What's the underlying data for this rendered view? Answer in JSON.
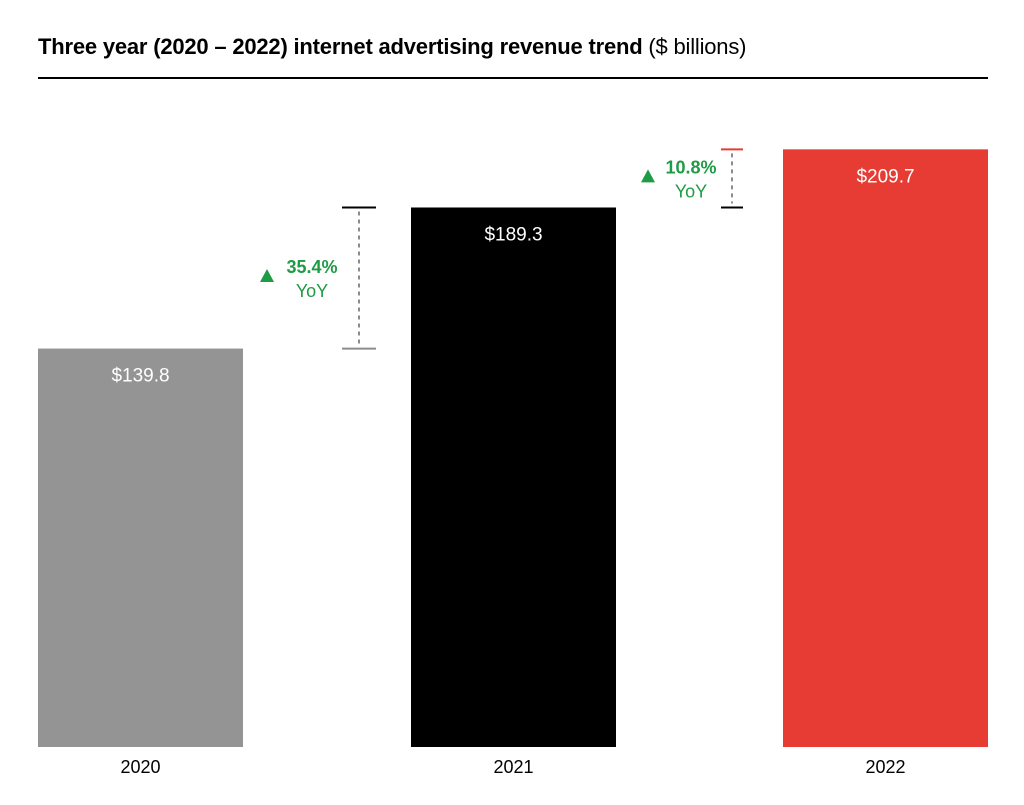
{
  "title": {
    "bold": "Three year (2020 – 2022) internet advertising revenue trend",
    "unit": "($ billions)"
  },
  "colors": {
    "bar_2020": "#949494",
    "bar_2021": "#000000",
    "bar_2022": "#e63c33",
    "growth": "#1f9b45",
    "bracket": "#8c8c8c"
  },
  "chart_data": {
    "type": "bar",
    "categories": [
      "2020",
      "2021",
      "2022"
    ],
    "values": [
      139.8,
      189.3,
      209.7
    ],
    "value_labels": [
      "$139.8",
      "$189.3",
      "$209.7"
    ],
    "title": "Three year (2020 – 2022) internet advertising revenue trend ($ billions)",
    "xlabel": "",
    "ylabel": "",
    "grid": false,
    "annotations": [
      {
        "from": "2020",
        "to": "2021",
        "change": "35.4%",
        "suffix": "YoY",
        "direction": "up"
      },
      {
        "from": "2021",
        "to": "2022",
        "change": "10.8%",
        "suffix": "YoY",
        "direction": "up"
      }
    ]
  }
}
